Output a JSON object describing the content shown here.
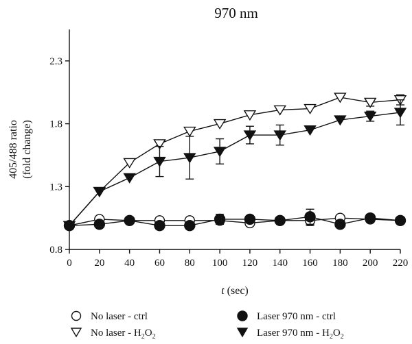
{
  "chart_data": {
    "type": "line",
    "title": "970 nm",
    "xlabel_italic": "t",
    "xlabel_rest": " (sec)",
    "ylabel_line1": "405/488 ratio",
    "ylabel_line2": "(fold change)",
    "xlim": [
      0,
      220
    ],
    "ylim": [
      0.8,
      2.55
    ],
    "xticks": [
      0,
      20,
      40,
      60,
      80,
      100,
      120,
      140,
      160,
      180,
      200,
      220
    ],
    "yticks": [
      0.8,
      1.3,
      1.8,
      2.3
    ],
    "yticks_labels": [
      "0.8",
      "1.3",
      "1.8",
      "2.3"
    ],
    "x": [
      0,
      20,
      40,
      60,
      80,
      100,
      120,
      140,
      160,
      180,
      200,
      220
    ],
    "series": [
      {
        "name": "No laser - ctrl",
        "marker": "circle-open",
        "values": [
          0.99,
          1.04,
          1.03,
          1.03,
          1.03,
          1.03,
          1.01,
          1.03,
          1.03,
          1.05,
          1.04,
          1.03
        ],
        "err": [
          0,
          0,
          0,
          0,
          0,
          0.01,
          0.02,
          0,
          0.04,
          0,
          0,
          0
        ]
      },
      {
        "name": "Laser 970 nm - ctrl",
        "marker": "circle-filled",
        "values": [
          0.99,
          1.0,
          1.03,
          0.99,
          0.99,
          1.04,
          1.04,
          1.03,
          1.06,
          1.0,
          1.05,
          1.03
        ],
        "err": [
          0,
          0,
          0,
          0.03,
          0,
          0.04,
          0,
          0,
          0.06,
          0,
          0.03,
          0.02
        ]
      },
      {
        "name_main": "No laser - H",
        "name_sub": "2",
        "name_mid": "O",
        "name_sub2": "2",
        "marker": "triangle-open",
        "values": [
          0.99,
          1.26,
          1.49,
          1.64,
          1.74,
          1.8,
          1.87,
          1.91,
          1.92,
          2.01,
          1.97,
          1.99
        ],
        "err": [
          0,
          0,
          0,
          0,
          0,
          0,
          0,
          0,
          0,
          0,
          0.03,
          0.04
        ]
      },
      {
        "name_main": "Laser 970 nm - H",
        "name_sub": "2",
        "name_mid": "O",
        "name_sub2": "2",
        "marker": "triangle-filled",
        "values": [
          0.99,
          1.26,
          1.37,
          1.5,
          1.53,
          1.58,
          1.71,
          1.71,
          1.75,
          1.83,
          1.86,
          1.89
        ],
        "err": [
          0,
          0,
          0,
          0.12,
          0.17,
          0.1,
          0.07,
          0.08,
          0,
          0,
          0.04,
          0.1
        ]
      }
    ]
  }
}
